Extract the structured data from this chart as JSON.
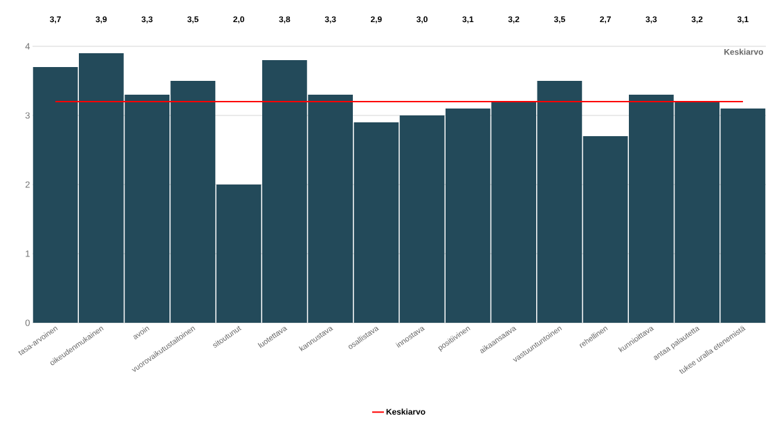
{
  "chart_data": {
    "type": "bar",
    "categories": [
      "tasa-arvoinen",
      "oikeudenmukainen",
      "avoin",
      "vuorovaikutustaitoinen",
      "sitoutunut",
      "luotettava",
      "kannustava",
      "osallistava",
      "innostava",
      "positiivinen",
      "aikaansaava",
      "vastuuntuntoinen",
      "rehellinen",
      "kunnioittava",
      "antaa palautetta",
      "tukee uralla etenemistä"
    ],
    "series": [
      {
        "color": "#234a5a",
        "values": [
          3.7,
          3.9,
          3.3,
          3.5,
          2.0,
          3.8,
          3.3,
          2.9,
          3.0,
          3.1,
          3.2,
          3.5,
          2.7,
          3.3,
          3.2,
          3.1
        ]
      },
      {
        "name": "Keskiarvo",
        "type": "line",
        "color": "#ff0000",
        "values": [
          3.2,
          3.2,
          3.2,
          3.2,
          3.2,
          3.2,
          3.2,
          3.2,
          3.2,
          3.2,
          3.2,
          3.2,
          3.2,
          3.2,
          3.2,
          3.2
        ]
      }
    ],
    "value_labels": [
      "3,7",
      "3,9",
      "3,3",
      "3,5",
      "2,0",
      "3,8",
      "3,3",
      "2,9",
      "3,0",
      "3,1",
      "3,2",
      "3,5",
      "2,7",
      "3,3",
      "3,2",
      "3,1"
    ],
    "annotations": [
      "Keskiarvo"
    ],
    "ylim": [
      0,
      4
    ],
    "yticks": [
      0,
      1,
      2,
      3,
      4
    ],
    "grid": "y",
    "legend": "bottom"
  }
}
